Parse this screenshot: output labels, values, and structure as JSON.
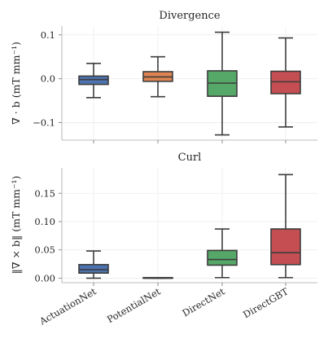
{
  "chart_data": [
    {
      "type": "box",
      "title": "Divergence",
      "ylabel": "∇ · b (mT mm⁻¹)",
      "ylim": [
        -0.14,
        0.12
      ],
      "yticks": [
        -0.1,
        0.0,
        0.1
      ],
      "ytick_labels": [
        "−0.1",
        "0.0",
        "0.1"
      ],
      "grid": true,
      "categories": [
        "ActuationNet",
        "PotentialNet",
        "DirectNet",
        "DirectGBT"
      ],
      "colors": [
        "#4c72b0",
        "#dd8452",
        "#55a868",
        "#c44e52"
      ],
      "boxes": [
        {
          "whislo": -0.043,
          "q1": -0.013,
          "med": -0.002,
          "q3": 0.006,
          "whishi": 0.035
        },
        {
          "whislo": -0.041,
          "q1": -0.006,
          "med": 0.004,
          "q3": 0.016,
          "whishi": 0.05
        },
        {
          "whislo": -0.128,
          "q1": -0.04,
          "med": -0.01,
          "q3": 0.018,
          "whishi": 0.106
        },
        {
          "whislo": -0.11,
          "q1": -0.034,
          "med": -0.007,
          "q3": 0.017,
          "whishi": 0.093
        }
      ]
    },
    {
      "type": "box",
      "title": "Curl",
      "ylabel": "‖∇ × b‖ (mT mm⁻¹)",
      "ylim": [
        -0.008,
        0.195
      ],
      "yticks": [
        0.0,
        0.05,
        0.1,
        0.15
      ],
      "ytick_labels": [
        "0.00",
        "0.05",
        "0.10",
        "0.15"
      ],
      "grid": true,
      "categories": [
        "ActuationNet",
        "PotentialNet",
        "DirectNet",
        "DirectGBT"
      ],
      "colors": [
        "#4c72b0",
        "#dd8452",
        "#55a868",
        "#c44e52"
      ],
      "boxes": [
        {
          "whislo": 0.0,
          "q1": 0.009,
          "med": 0.015,
          "q3": 0.024,
          "whishi": 0.048
        },
        {
          "whislo": 0.0,
          "q1": 0.0,
          "med": 0.0,
          "q3": 0.001,
          "whishi": 0.001
        },
        {
          "whislo": 0.001,
          "q1": 0.023,
          "med": 0.033,
          "q3": 0.049,
          "whishi": 0.087
        },
        {
          "whislo": 0.001,
          "q1": 0.024,
          "med": 0.045,
          "q3": 0.087,
          "whishi": 0.183
        }
      ]
    }
  ]
}
